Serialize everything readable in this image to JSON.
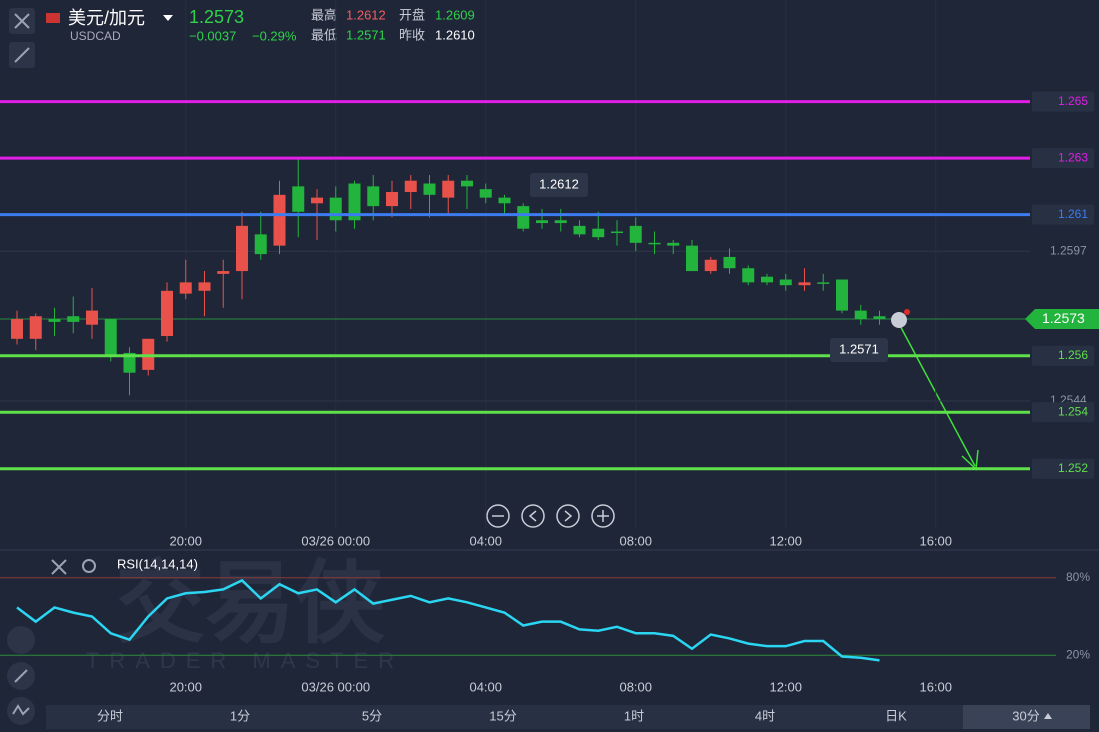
{
  "header": {
    "pair": "美元/加元",
    "symbol": "USDCAD",
    "price": "1.2573",
    "change": "−0.0037",
    "change_pct": "−0.29%",
    "stats": [
      {
        "label": "最高",
        "value": "1.2612"
      },
      {
        "label": "开盘",
        "value": "1.2609"
      },
      {
        "label": "最低",
        "value": "1.2571"
      },
      {
        "label": "昨收",
        "value": "1.2610"
      }
    ]
  },
  "watermark": {
    "title": "交易侠",
    "subtitle": "TRADER MASTER"
  },
  "tabs": [
    "分时",
    "1分",
    "5分",
    "15分",
    "1时",
    "4时",
    "日K",
    "30分"
  ],
  "chart_data": [
    {
      "type": "candlestick",
      "categories": [
        null,
        null,
        null,
        null,
        null,
        null,
        null,
        null,
        null,
        "20:00",
        null,
        null,
        null,
        null,
        null,
        null,
        null,
        "03/26 00:00",
        null,
        null,
        null,
        null,
        null,
        null,
        null,
        "04:00",
        null,
        null,
        null,
        null,
        null,
        null,
        null,
        "08:00",
        null,
        null,
        null,
        null,
        null,
        null,
        null,
        "12:00",
        null,
        null,
        null,
        null,
        null,
        null,
        null,
        "16:00",
        null,
        null,
        null
      ],
      "open": [
        1.2566,
        1.2566,
        1.2573,
        1.2574,
        1.2571,
        1.2573,
        1.2561,
        1.2555,
        1.2567,
        1.2582,
        1.2583,
        1.2589,
        1.259,
        1.2603,
        1.2599,
        1.262,
        1.2614,
        1.2616,
        1.2621,
        1.262,
        1.2613,
        1.2618,
        1.2621,
        1.2616,
        1.2622,
        1.2619,
        1.2616,
        1.2613,
        1.2608,
        1.2608,
        1.2606,
        1.2605,
        1.2604,
        1.2606,
        1.26,
        1.26,
        1.2599,
        1.259,
        1.2595,
        1.2591,
        1.2588,
        1.2587,
        1.2585,
        1.2586,
        1.2587,
        1.2576,
        1.2574,
        null,
        null,
        null,
        null,
        null,
        null
      ],
      "high": [
        1.2576,
        1.2575,
        1.2577,
        1.2581,
        1.2584,
        1.2573,
        1.2563,
        1.2566,
        1.2586,
        1.2594,
        1.259,
        1.2594,
        1.2611,
        1.2611,
        1.2622,
        1.263,
        1.2619,
        1.262,
        1.2622,
        1.2624,
        1.2622,
        1.2624,
        1.2624,
        1.2624,
        1.2624,
        1.2621,
        1.2617,
        1.2614,
        1.2612,
        1.2612,
        1.2608,
        1.2611,
        1.2608,
        1.2609,
        1.2604,
        1.2601,
        1.2601,
        1.2595,
        1.2598,
        1.2592,
        1.2589,
        1.2589,
        1.2591,
        1.2589,
        1.2587,
        1.2578,
        1.2576,
        null,
        null,
        null,
        null,
        null,
        null
      ],
      "low": [
        1.2564,
        1.2562,
        1.2567,
        1.2568,
        1.2566,
        1.2558,
        1.2546,
        1.2553,
        1.2565,
        1.258,
        1.2574,
        1.2577,
        1.258,
        1.2594,
        1.2596,
        1.2602,
        1.2601,
        1.2604,
        1.2605,
        1.2608,
        1.2609,
        1.2612,
        1.2609,
        1.261,
        1.2612,
        1.2614,
        1.261,
        1.2604,
        1.2605,
        1.2604,
        1.2602,
        1.2601,
        1.2599,
        1.2597,
        1.2596,
        1.2596,
        1.259,
        1.2589,
        1.2589,
        1.2585,
        1.2585,
        1.2583,
        1.2583,
        1.2583,
        1.2575,
        1.2571,
        1.2571,
        null,
        null,
        null,
        null,
        null,
        null
      ],
      "close": [
        1.2573,
        1.2574,
        1.2572,
        1.2572,
        1.2576,
        1.256,
        1.2554,
        1.2566,
        1.2583,
        1.2586,
        1.2586,
        1.259,
        1.2606,
        1.2596,
        1.2617,
        1.2611,
        1.2616,
        1.2608,
        1.2608,
        1.2613,
        1.2618,
        1.2622,
        1.2617,
        1.2622,
        1.262,
        1.2616,
        1.2614,
        1.2605,
        1.2607,
        1.2607,
        1.2603,
        1.2602,
        1.2604,
        1.26,
        1.26,
        1.2599,
        1.259,
        1.2594,
        1.2591,
        1.2586,
        1.2586,
        1.2585,
        1.2586,
        1.2586,
        1.2576,
        1.2573,
        1.2573,
        null,
        null,
        null,
        null,
        null,
        null
      ],
      "up_color": "#e8524a",
      "down_color": "#22b43c",
      "ylim": [
        1.2499,
        1.2686
      ],
      "yticks": [
        1.2597,
        1.2544
      ],
      "lines": [
        {
          "value": 1.265,
          "color": "#e01ee6"
        },
        {
          "value": 1.263,
          "color": "#e01ee6"
        },
        {
          "value": 1.261,
          "color": "#3c7cf0"
        },
        {
          "value": 1.256,
          "color": "#5ee04a"
        },
        {
          "value": 1.254,
          "color": "#5ee04a"
        },
        {
          "value": 1.252,
          "color": "#5ee04a"
        }
      ],
      "current_price": 1.2573,
      "max_label": 1.2612,
      "min_label": 1.2571
    },
    {
      "type": "line",
      "title": "RSI(14,14,14)",
      "categories": [
        null,
        null,
        null,
        null,
        null,
        null,
        null,
        null,
        null,
        "20:00",
        null,
        null,
        null,
        null,
        null,
        null,
        null,
        "03/26 00:00",
        null,
        null,
        null,
        null,
        null,
        null,
        null,
        "04:00",
        null,
        null,
        null,
        null,
        null,
        null,
        null,
        "08:00",
        null,
        null,
        null,
        null,
        null,
        null,
        null,
        "12:00",
        null,
        null,
        null,
        null,
        null,
        null,
        null,
        "16:00",
        null,
        null,
        null
      ],
      "values": [
        57,
        46,
        57,
        53,
        50,
        37,
        32,
        50,
        64,
        68,
        69,
        71,
        78,
        64,
        75,
        68,
        71,
        61,
        71,
        60,
        63,
        66,
        61,
        64,
        61,
        57,
        53,
        43,
        46,
        46,
        40,
        39,
        42,
        37,
        37,
        35,
        25,
        36,
        33,
        29,
        27,
        27,
        31,
        31,
        19,
        18,
        16,
        null,
        null,
        null,
        null,
        null,
        null
      ],
      "color": "#2ad6f2",
      "ylim": [
        0,
        100
      ],
      "yticks": [
        {
          "value": 80,
          "label": "80%"
        },
        {
          "value": 20,
          "label": "20%"
        }
      ]
    }
  ]
}
